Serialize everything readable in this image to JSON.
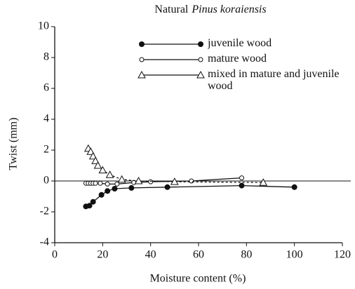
{
  "chart_data": {
    "type": "line",
    "title": [
      "Natural",
      "Pinus koraiensis"
    ],
    "xlabel": "Moisture content (%)",
    "ylabel": "Twist (mm)",
    "xlim": [
      0,
      120
    ],
    "xticks": [
      0,
      20,
      40,
      60,
      80,
      100,
      120
    ],
    "ylim": [
      -4,
      10
    ],
    "yticks": [
      -4,
      -2,
      0,
      2,
      4,
      6,
      8,
      10
    ],
    "legend": "upper right",
    "series": [
      {
        "name": "juvenile wood",
        "color": "#111111",
        "marker": "filled-circle",
        "dash": false,
        "x": [
          13,
          14.5,
          16,
          19.5,
          22,
          25,
          32,
          47,
          78,
          100
        ],
        "values": [
          -1.65,
          -1.6,
          -1.35,
          -0.9,
          -0.65,
          -0.5,
          -0.45,
          -0.4,
          -0.3,
          -0.4
        ]
      },
      {
        "name": "mature wood",
        "color": "#111111",
        "marker": "open-circle",
        "dash": false,
        "x": [
          13,
          14,
          15,
          16,
          17,
          19,
          22,
          26,
          33,
          40,
          57,
          78
        ],
        "values": [
          -0.15,
          -0.15,
          -0.15,
          -0.15,
          -0.15,
          -0.15,
          -0.2,
          -0.2,
          -0.1,
          -0.05,
          0,
          0.2
        ]
      },
      {
        "name": "mixed in mature and juvenile wood",
        "color": "#111111",
        "marker": "open-triangle",
        "dash": true,
        "x": [
          14,
          15,
          16,
          17,
          18,
          20,
          23,
          28,
          35,
          50,
          87
        ],
        "values": [
          2.1,
          1.9,
          1.6,
          1.3,
          1.0,
          0.7,
          0.4,
          0.1,
          0,
          -0.05,
          -0.1
        ]
      }
    ]
  }
}
